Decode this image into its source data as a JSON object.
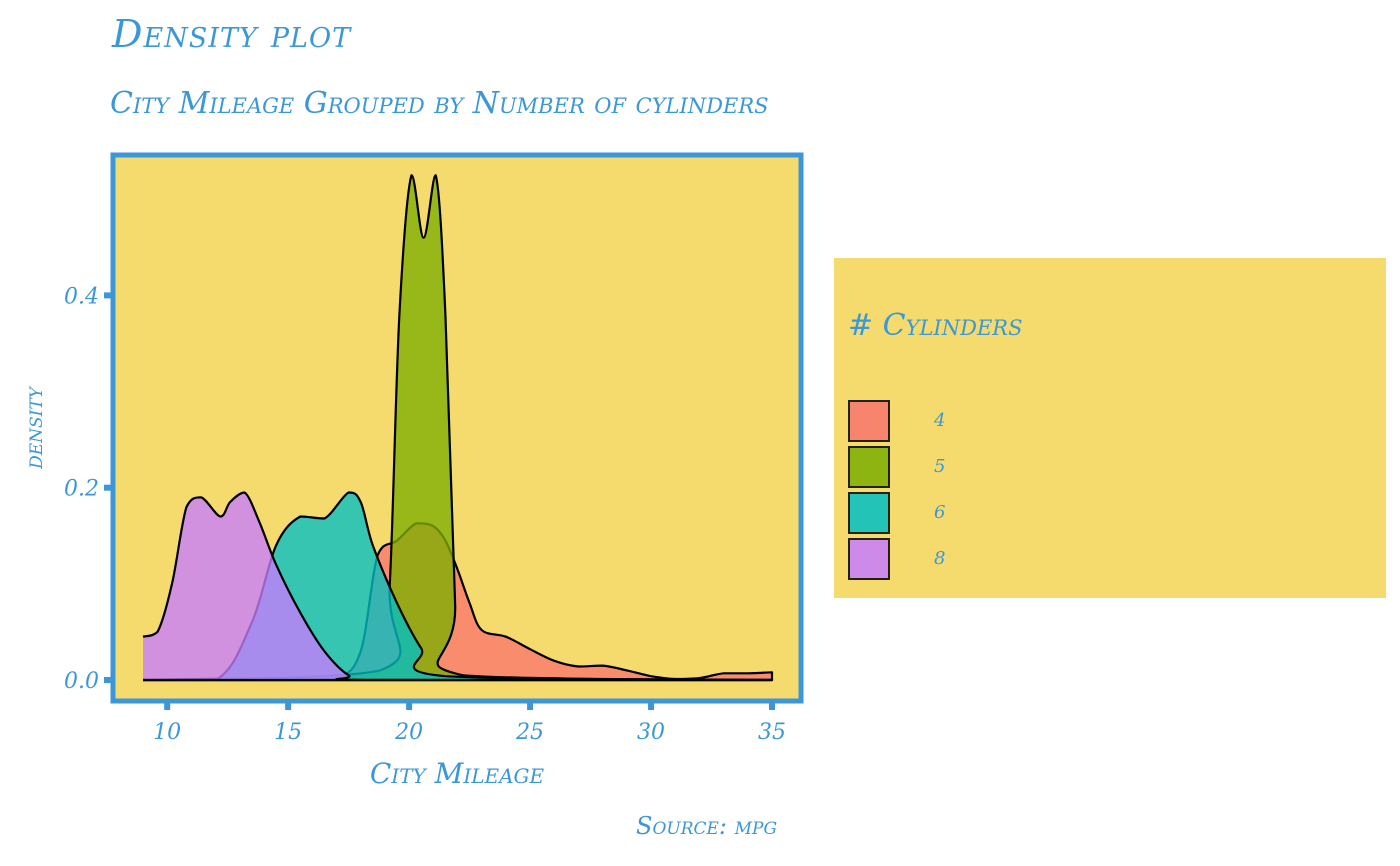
{
  "chart_data": {
    "type": "area",
    "title": "Density plot",
    "subtitle": "City Mileage Grouped by Number of cylinders",
    "caption": "Source: mpg",
    "xlabel": "City Mileage",
    "ylabel": "density",
    "xlim": [
      9,
      35
    ],
    "ylim": [
      0,
      0.52
    ],
    "x_ticks": [
      10,
      15,
      20,
      25,
      30,
      35
    ],
    "y_ticks": [
      0.0,
      0.2,
      0.4
    ],
    "y_tick_labels": [
      "0.0",
      "0.2",
      "0.4"
    ],
    "legend": {
      "title": "# Cylinders",
      "position": "right"
    },
    "colors": {
      "panel": "#f5db6e",
      "frame": "#3c97d8",
      "text": "#3c97d8"
    },
    "series": [
      {
        "name": "4",
        "color": "#f8766d",
        "x": [
          9,
          15,
          17,
          18,
          18.7,
          19.5,
          20.3,
          21,
          21.5,
          22,
          22.5,
          23,
          24,
          25,
          26,
          27,
          28,
          29,
          30,
          31,
          32,
          33,
          34,
          35
        ],
        "y": [
          0,
          0,
          0.002,
          0.03,
          0.13,
          0.145,
          0.163,
          0.16,
          0.145,
          0.115,
          0.08,
          0.052,
          0.045,
          0.032,
          0.02,
          0.014,
          0.015,
          0.01,
          0.004,
          0.001,
          0.002,
          0.007,
          0.007,
          0.008
        ]
      },
      {
        "name": "5",
        "color": "#7cae00",
        "x": [
          9,
          18.8,
          19.2,
          19.6,
          20.1,
          20.6,
          21.1,
          21.5,
          21.9,
          22.2,
          35
        ],
        "y": [
          0,
          0.01,
          0.1,
          0.38,
          0.525,
          0.46,
          0.525,
          0.38,
          0.08,
          0.005,
          0
        ]
      },
      {
        "name": "6",
        "color": "#00bfc4",
        "x": [
          9,
          12,
          13.5,
          14.5,
          15.5,
          16.5,
          17.5,
          18,
          18.5,
          19.5,
          20.5,
          21.5,
          35
        ],
        "y": [
          0,
          0,
          0.06,
          0.14,
          0.17,
          0.168,
          0.195,
          0.185,
          0.14,
          0.08,
          0.033,
          0.004,
          0
        ]
      },
      {
        "name": "8",
        "color": "#c77cff",
        "x": [
          9,
          9.6,
          10.2,
          10.8,
          11.4,
          12.2,
          12.6,
          13.2,
          13.8,
          14.5,
          15.5,
          16.5,
          17.5,
          18.5,
          35
        ],
        "y": [
          0.045,
          0.05,
          0.1,
          0.18,
          0.19,
          0.17,
          0.185,
          0.195,
          0.165,
          0.12,
          0.07,
          0.03,
          0.005,
          0,
          0
        ]
      }
    ]
  }
}
